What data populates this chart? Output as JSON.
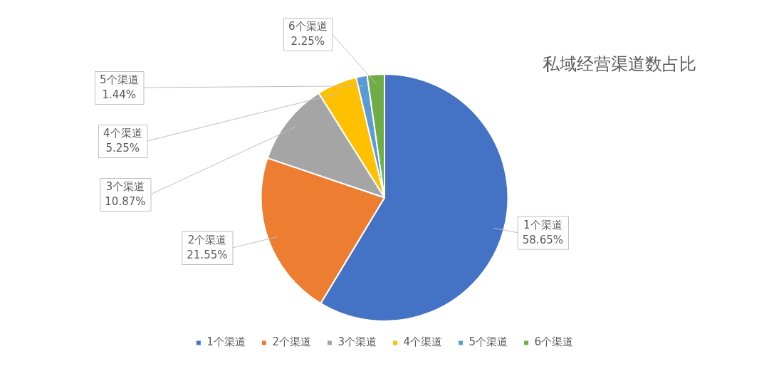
{
  "chart_data": {
    "type": "pie",
    "title": "私域经营渠道数占比",
    "categories": [
      "1个渠道",
      "2个渠道",
      "3个渠道",
      "4个渠道",
      "5个渠道",
      "6个渠道"
    ],
    "values": [
      58.65,
      21.55,
      10.87,
      5.25,
      1.44,
      2.25
    ],
    "value_labels": [
      "58.65%",
      "21.55%",
      "10.87%",
      "5.25%",
      "1.44%",
      "2.25%"
    ],
    "colors": [
      "#4472c4",
      "#ed7d31",
      "#a5a5a5",
      "#ffc000",
      "#5b9bd5",
      "#70ad47"
    ],
    "legend": "bottom"
  }
}
